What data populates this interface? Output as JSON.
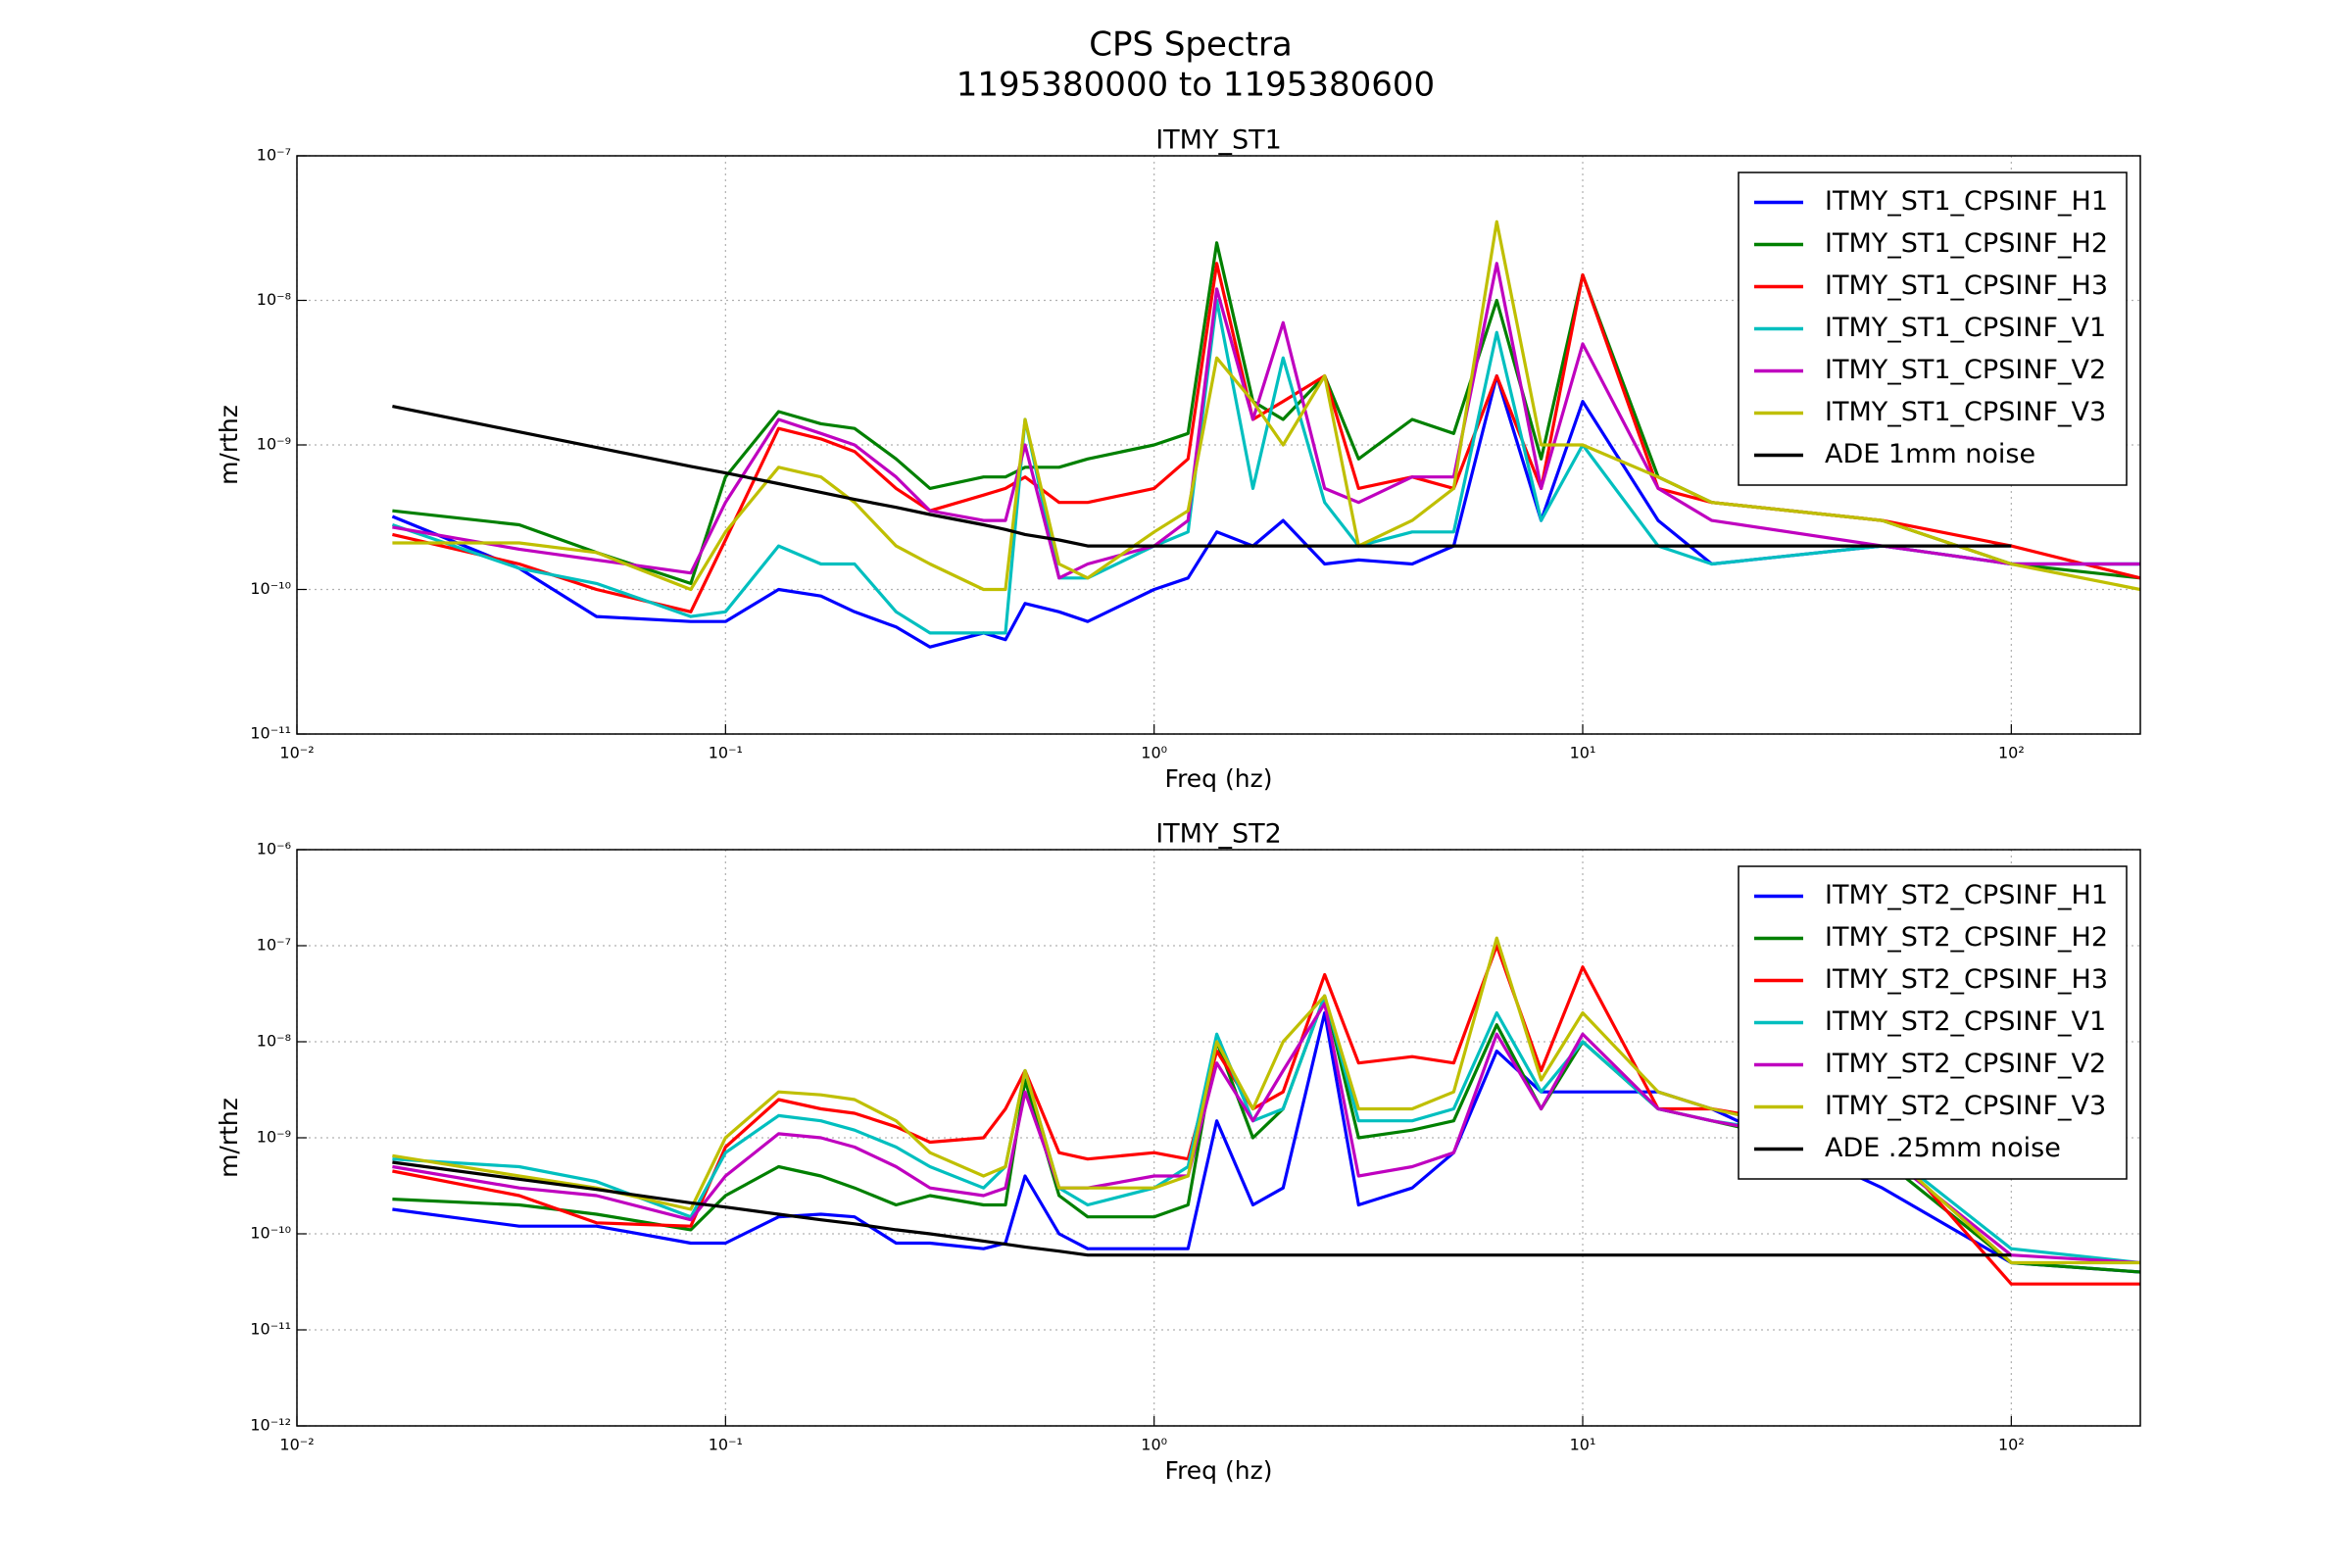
{
  "figure": {
    "title": "CPS Spectra",
    "subtitle": "1195380000 to 1195380600"
  },
  "chart_data": [
    {
      "type": "line",
      "title": "ITMY_ST1",
      "x_label": "Freq (hz)",
      "y_label": "m/rthz",
      "x_scale": "log",
      "y_scale": "log",
      "grid": true,
      "legend": "upper right",
      "xlim": [
        0.01,
        200
      ],
      "ylim": [
        1e-11,
        1e-07
      ],
      "xticks": [
        {
          "value": 0.01,
          "label": "10⁻²"
        },
        {
          "value": 0.1,
          "label": "10⁻¹"
        },
        {
          "value": 1,
          "label": "10⁰"
        },
        {
          "value": 10,
          "label": "10¹"
        },
        {
          "value": 100,
          "label": "10²"
        }
      ],
      "yticks": [
        {
          "value": 1e-11,
          "label": "10⁻¹¹"
        },
        {
          "value": 1e-10,
          "label": "10⁻¹⁰"
        },
        {
          "value": 1e-09,
          "label": "10⁻⁹"
        },
        {
          "value": 1e-08,
          "label": "10⁻⁸"
        },
        {
          "value": 1e-07,
          "label": "10⁻⁷"
        }
      ],
      "x": [
        0.0167,
        0.033,
        0.05,
        0.083,
        0.1,
        0.133,
        0.167,
        0.2,
        0.25,
        0.3,
        0.4,
        0.45,
        0.5,
        0.6,
        0.7,
        1,
        1.2,
        1.4,
        1.7,
        2,
        2.5,
        3,
        4,
        5,
        6.3,
        8,
        10,
        15,
        20,
        50,
        100,
        200
      ],
      "series": [
        {
          "name": "ITMY_ST1_CPSINF_H1",
          "color": "#0000ff",
          "values": [
            3.2e-10,
            1.4e-10,
            6.5e-11,
            6e-11,
            6e-11,
            1e-10,
            9e-11,
            7e-11,
            5.5e-11,
            4e-11,
            5e-11,
            4.5e-11,
            8e-11,
            7e-11,
            6e-11,
            1e-10,
            1.2e-10,
            2.5e-10,
            2e-10,
            3e-10,
            1.5e-10,
            1.6e-10,
            1.5e-10,
            2e-10,
            3e-09,
            3e-10,
            2e-09,
            3e-10,
            1.5e-10,
            2e-10,
            1.5e-10,
            1.5e-10
          ]
        },
        {
          "name": "ITMY_ST1_CPSINF_H2",
          "color": "#008000",
          "values": [
            3.5e-10,
            2.8e-10,
            1.8e-10,
            1.1e-10,
            6e-10,
            1.7e-09,
            1.4e-09,
            1.3e-09,
            8e-10,
            5e-10,
            6e-10,
            6e-10,
            7e-10,
            7e-10,
            8e-10,
            1e-09,
            1.2e-09,
            2.5e-08,
            2e-09,
            1.5e-09,
            3e-09,
            8e-10,
            1.5e-09,
            1.2e-09,
            1e-08,
            8e-10,
            1.5e-08,
            6e-10,
            4e-10,
            3e-10,
            1.5e-10,
            1.2e-10
          ]
        },
        {
          "name": "ITMY_ST1_CPSINF_H3",
          "color": "#ff0000",
          "values": [
            2.4e-10,
            1.5e-10,
            1e-10,
            7e-11,
            2.2e-10,
            1.3e-09,
            1.1e-09,
            9e-10,
            5e-10,
            3.5e-10,
            4.5e-10,
            5e-10,
            6e-10,
            4e-10,
            4e-10,
            5e-10,
            8e-10,
            1.8e-08,
            1.5e-09,
            2e-09,
            3e-09,
            5e-10,
            6e-10,
            5e-10,
            3e-09,
            5e-10,
            1.5e-08,
            5e-10,
            4e-10,
            3e-10,
            2e-10,
            1.2e-10
          ]
        },
        {
          "name": "ITMY_ST1_CPSINF_V1",
          "color": "#00bfbf",
          "values": [
            2.8e-10,
            1.4e-10,
            1.1e-10,
            6.5e-11,
            7e-11,
            2e-10,
            1.5e-10,
            1.5e-10,
            7e-11,
            5e-11,
            5e-11,
            5e-11,
            1.5e-09,
            1.2e-10,
            1.2e-10,
            2e-10,
            2.5e-10,
            1e-08,
            5e-10,
            4e-09,
            4e-10,
            2e-10,
            2.5e-10,
            2.5e-10,
            6e-09,
            3e-10,
            1e-09,
            2e-10,
            1.5e-10,
            2e-10,
            1.5e-10,
            1.5e-10
          ]
        },
        {
          "name": "ITMY_ST1_CPSINF_V2",
          "color": "#bf00bf",
          "values": [
            2.7e-10,
            1.9e-10,
            1.6e-10,
            1.3e-10,
            4e-10,
            1.5e-09,
            1.2e-09,
            1e-09,
            6e-10,
            3.5e-10,
            3e-10,
            3e-10,
            1e-09,
            1.2e-10,
            1.5e-10,
            2e-10,
            3e-10,
            1.2e-08,
            1.5e-09,
            7e-09,
            5e-10,
            4e-10,
            6e-10,
            6e-10,
            1.8e-08,
            5e-10,
            5e-09,
            5e-10,
            3e-10,
            2e-10,
            1.5e-10,
            1.5e-10
          ]
        },
        {
          "name": "ITMY_ST1_CPSINF_V3",
          "color": "#bfbf00",
          "values": [
            2.1e-10,
            2.1e-10,
            1.8e-10,
            1e-10,
            2.5e-10,
            7e-10,
            6e-10,
            4e-10,
            2e-10,
            1.5e-10,
            1e-10,
            1e-10,
            1.5e-09,
            1.5e-10,
            1.2e-10,
            2.5e-10,
            3.5e-10,
            4e-09,
            2e-09,
            1e-09,
            3e-09,
            2e-10,
            3e-10,
            5e-10,
            3.5e-08,
            1e-09,
            1e-09,
            6e-10,
            4e-10,
            3e-10,
            1.5e-10,
            1e-10
          ]
        },
        {
          "name": "ADE 1mm noise",
          "color": "#000000",
          "values": [
            1.85e-09,
            1.23e-09,
            9.6e-10,
            7.1e-10,
            6.4e-10,
            5.4e-10,
            4.7e-10,
            4.2e-10,
            3.7e-10,
            3.3e-10,
            2.8e-10,
            2.6e-10,
            2.4e-10,
            2.2e-10,
            2e-10,
            2e-10,
            2e-10,
            2e-10,
            2e-10,
            2e-10,
            2e-10,
            2e-10,
            2e-10,
            2e-10,
            2e-10,
            2e-10,
            2e-10,
            2e-10,
            2e-10,
            2e-10,
            2e-10,
            null
          ]
        }
      ]
    },
    {
      "type": "line",
      "title": "ITMY_ST2",
      "x_label": "Freq (hz)",
      "y_label": "m/rthz",
      "x_scale": "log",
      "y_scale": "log",
      "grid": true,
      "legend": "upper right",
      "xlim": [
        0.01,
        200
      ],
      "ylim": [
        1e-12,
        1e-06
      ],
      "xticks": [
        {
          "value": 0.01,
          "label": "10⁻²"
        },
        {
          "value": 0.1,
          "label": "10⁻¹"
        },
        {
          "value": 1,
          "label": "10⁰"
        },
        {
          "value": 10,
          "label": "10¹"
        },
        {
          "value": 100,
          "label": "10²"
        }
      ],
      "yticks": [
        {
          "value": 1e-12,
          "label": "10⁻¹²"
        },
        {
          "value": 1e-11,
          "label": "10⁻¹¹"
        },
        {
          "value": 1e-10,
          "label": "10⁻¹⁰"
        },
        {
          "value": 1e-09,
          "label": "10⁻⁹"
        },
        {
          "value": 1e-08,
          "label": "10⁻⁸"
        },
        {
          "value": 1e-07,
          "label": "10⁻⁷"
        },
        {
          "value": 1e-06,
          "label": "10⁻⁶"
        }
      ],
      "x": [
        0.0167,
        0.033,
        0.05,
        0.083,
        0.1,
        0.133,
        0.167,
        0.2,
        0.25,
        0.3,
        0.4,
        0.45,
        0.5,
        0.6,
        0.7,
        1,
        1.2,
        1.4,
        1.7,
        2,
        2.5,
        3,
        4,
        5,
        6.3,
        8,
        10,
        15,
        20,
        50,
        100,
        200
      ],
      "series": [
        {
          "name": "ITMY_ST2_CPSINF_H1",
          "color": "#0000ff",
          "values": [
            1.8e-10,
            1.2e-10,
            1.2e-10,
            8e-11,
            8e-11,
            1.5e-10,
            1.6e-10,
            1.5e-10,
            8e-11,
            8e-11,
            7e-11,
            8e-11,
            4e-10,
            1e-10,
            7e-11,
            7e-11,
            7e-11,
            1.5e-09,
            2e-10,
            3e-10,
            2e-08,
            2e-10,
            3e-10,
            7e-10,
            8e-09,
            3e-09,
            3e-09,
            3e-09,
            2e-09,
            3e-10,
            5e-11,
            4e-11
          ]
        },
        {
          "name": "ITMY_ST2_CPSINF_H2",
          "color": "#008000",
          "values": [
            2.3e-10,
            2e-10,
            1.6e-10,
            1.1e-10,
            2.5e-10,
            5e-10,
            4e-10,
            3e-10,
            2e-10,
            2.5e-10,
            2e-10,
            2e-10,
            4e-09,
            2.5e-10,
            1.5e-10,
            1.5e-10,
            2e-10,
            1e-08,
            1e-09,
            2e-09,
            3e-08,
            1e-09,
            1.2e-09,
            1.5e-09,
            1.5e-08,
            2e-09,
            1e-08,
            2e-09,
            1.5e-09,
            6e-10,
            5e-11,
            4e-11
          ]
        },
        {
          "name": "ITMY_ST2_CPSINF_H3",
          "color": "#ff0000",
          "values": [
            4.5e-10,
            2.5e-10,
            1.3e-10,
            1.2e-10,
            8e-10,
            2.5e-09,
            2e-09,
            1.8e-09,
            1.3e-09,
            9e-10,
            1e-09,
            2e-09,
            5e-09,
            7e-10,
            6e-10,
            7e-10,
            6e-10,
            8e-09,
            2e-09,
            3e-09,
            5e-08,
            6e-09,
            7e-09,
            6e-09,
            1e-07,
            5e-09,
            6e-08,
            2e-09,
            2e-09,
            1e-09,
            3e-11,
            3e-11
          ]
        },
        {
          "name": "ITMY_ST2_CPSINF_V1",
          "color": "#00bfbf",
          "values": [
            6e-10,
            5e-10,
            3.5e-10,
            1.5e-10,
            7e-10,
            1.7e-09,
            1.5e-09,
            1.2e-09,
            8e-10,
            5e-10,
            3e-10,
            5e-10,
            5e-09,
            3e-10,
            2e-10,
            3e-10,
            5e-10,
            1.2e-08,
            1.5e-09,
            2e-09,
            3e-08,
            1.5e-09,
            1.5e-09,
            2e-09,
            2e-08,
            3e-09,
            1e-08,
            2e-09,
            1.5e-09,
            8e-10,
            7e-11,
            5e-11
          ]
        },
        {
          "name": "ITMY_ST2_CPSINF_V2",
          "color": "#bf00bf",
          "values": [
            5e-10,
            3e-10,
            2.5e-10,
            1.4e-10,
            4e-10,
            1.1e-09,
            1e-09,
            8e-10,
            5e-10,
            3e-10,
            2.5e-10,
            3e-10,
            3e-09,
            3e-10,
            3e-10,
            4e-10,
            4e-10,
            6e-09,
            1.5e-09,
            5e-09,
            2.5e-08,
            4e-10,
            5e-10,
            7e-10,
            1.2e-08,
            2e-09,
            1.2e-08,
            2e-09,
            1.5e-09,
            7e-10,
            6e-11,
            5e-11
          ]
        },
        {
          "name": "ITMY_ST2_CPSINF_V3",
          "color": "#bfbf00",
          "values": [
            6.5e-10,
            4e-10,
            3e-10,
            1.8e-10,
            1e-09,
            3e-09,
            2.8e-09,
            2.5e-09,
            1.5e-09,
            7e-10,
            4e-10,
            5e-10,
            5e-09,
            3e-10,
            3e-10,
            3e-10,
            4e-10,
            1e-08,
            2e-09,
            1e-08,
            3e-08,
            2e-09,
            2e-09,
            3e-09,
            1.2e-07,
            4e-09,
            2e-08,
            3e-09,
            2e-09,
            8e-10,
            5e-11,
            5e-11
          ]
        },
        {
          "name": "ADE .25mm noise",
          "color": "#000000",
          "values": [
            5.56e-10,
            3.7e-10,
            2.9e-10,
            2.1e-10,
            1.9e-10,
            1.6e-10,
            1.4e-10,
            1.27e-10,
            1.1e-10,
            1e-10,
            8.4e-11,
            7.8e-11,
            7.3e-11,
            6.6e-11,
            6e-11,
            6e-11,
            6e-11,
            6e-11,
            6e-11,
            6e-11,
            6e-11,
            6e-11,
            6e-11,
            6e-11,
            6e-11,
            6e-11,
            6e-11,
            6e-11,
            6e-11,
            6e-11,
            6e-11,
            null
          ]
        }
      ]
    }
  ]
}
